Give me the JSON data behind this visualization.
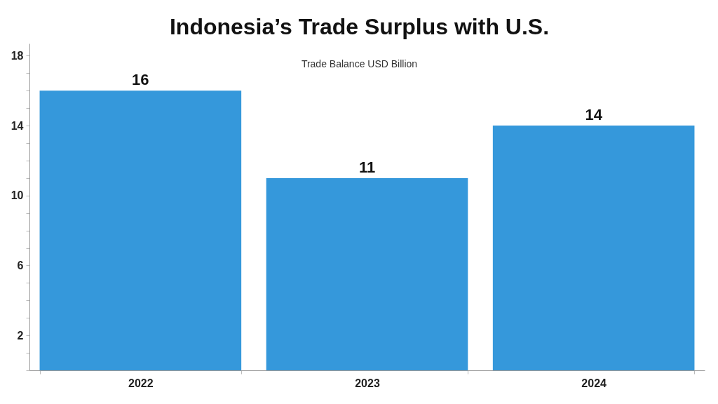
{
  "chart_data": {
    "type": "bar",
    "title": "Indonesia’s Trade Surplus with U.S.",
    "annotations": [
      "Trade Balance USD Billion"
    ],
    "categories": [
      "2022",
      "2023",
      "2024"
    ],
    "values": [
      16,
      11,
      14
    ],
    "color": "#3598db",
    "ylim": [
      0,
      18.7
    ],
    "yticks": [
      {
        "value": 0,
        "label": null
      },
      {
        "value": 1,
        "label": null
      },
      2,
      {
        "value": 3,
        "label": null
      },
      {
        "value": 4,
        "label": null
      },
      {
        "value": 5,
        "label": null
      },
      6,
      {
        "value": 7,
        "label": null
      },
      {
        "value": 8,
        "label": null
      },
      {
        "value": 9,
        "label": null
      },
      10,
      {
        "value": 11,
        "label": null
      },
      {
        "value": 12,
        "label": null
      },
      {
        "value": 13,
        "label": null
      },
      14,
      {
        "value": 15,
        "label": null
      },
      {
        "value": 16,
        "label": null
      },
      {
        "value": 17,
        "label": null
      },
      18
    ],
    "data_labels": true
  }
}
